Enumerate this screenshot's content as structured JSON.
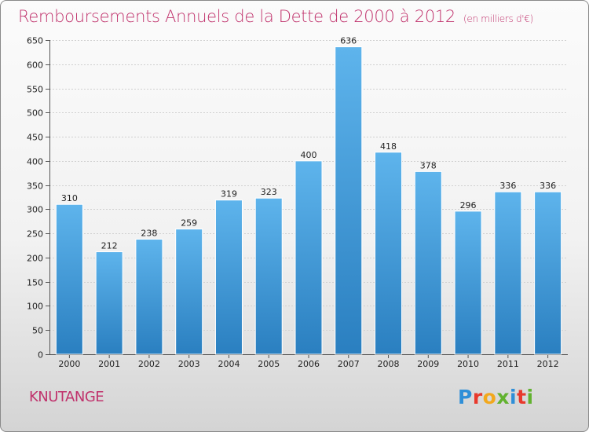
{
  "header": {
    "title": "Remboursements Annuels de la Dette de 2000 à 2012",
    "subtitle": "(en milliers d'€)"
  },
  "footer": {
    "commune": "KNUTANGE",
    "logo_text": "Proxiti",
    "logo_letters": [
      {
        "ch": "P",
        "color": "#2f8fd8"
      },
      {
        "ch": "r",
        "color": "#e8392c"
      },
      {
        "ch": "o",
        "color": "#f2a81d"
      },
      {
        "ch": "x",
        "color": "#62b22f"
      },
      {
        "ch": "i",
        "color": "#2f8fd8"
      },
      {
        "ch": "t",
        "color": "#e8392c"
      },
      {
        "ch": "i",
        "color": "#62b22f"
      }
    ]
  },
  "colors": {
    "title": "#c0326c",
    "bar_top": "#5eb4ec",
    "bar_bottom": "#2a7fc0"
  },
  "chart_data": {
    "type": "bar",
    "title": "Remboursements Annuels de la Dette de 2000 à 2012",
    "subtitle": "(en milliers d'€)",
    "categories": [
      "2000",
      "2001",
      "2002",
      "2003",
      "2004",
      "2005",
      "2006",
      "2007",
      "2008",
      "2009",
      "2010",
      "2011",
      "2012"
    ],
    "values": [
      310,
      212,
      238,
      259,
      319,
      323,
      400,
      636,
      418,
      378,
      296,
      336,
      336
    ],
    "ylim": [
      0,
      650
    ],
    "yticks": [
      0,
      50,
      100,
      150,
      200,
      250,
      300,
      350,
      400,
      450,
      500,
      550,
      600,
      650
    ],
    "grid": true,
    "legend": "none"
  }
}
